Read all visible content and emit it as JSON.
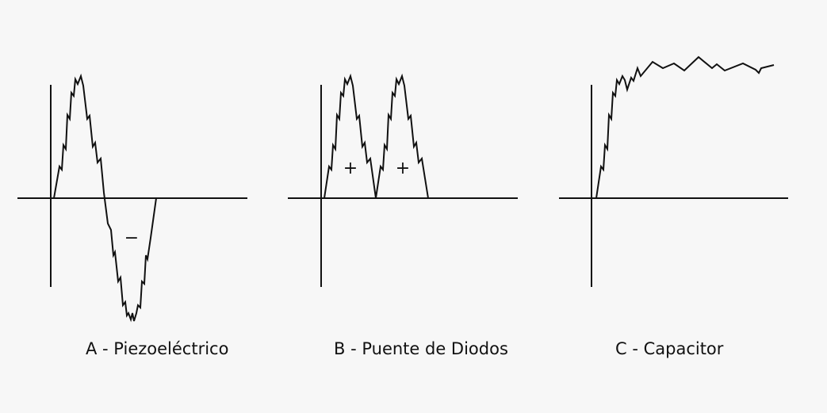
{
  "panels": [
    {
      "caption": "A - Piezoeléctrico",
      "signs": [
        "−"
      ]
    },
    {
      "caption": "B - Puente de Diodos",
      "signs": [
        "+",
        "+"
      ]
    },
    {
      "caption": "C - Capacitor",
      "signs": []
    }
  ],
  "colors": {
    "background": "#f7f7f7",
    "stroke": "#111111"
  }
}
